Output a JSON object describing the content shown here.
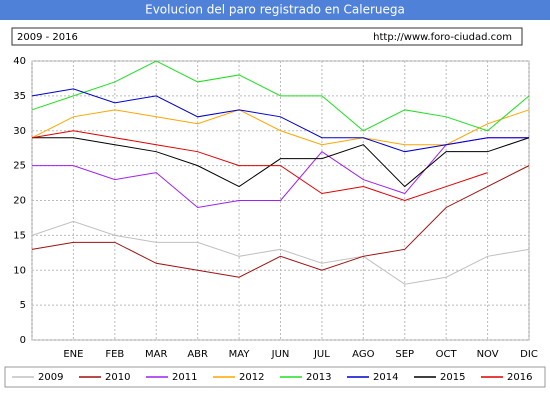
{
  "chart_data": {
    "type": "line",
    "title": "Evolucion del paro registrado en Caleruega",
    "subtitle": "2009 - 2016",
    "source": "http://www.foro-ciudad.com",
    "categories": [
      null,
      "ENE",
      "FEB",
      "MAR",
      "ABR",
      "MAY",
      "JUN",
      "JUL",
      "AGO",
      "SEP",
      "OCT",
      "NOV",
      "DIC"
    ],
    "ylim": [
      0,
      40
    ],
    "yticks": [
      0,
      5,
      10,
      15,
      20,
      25,
      30,
      35,
      40
    ],
    "grid": true,
    "series": [
      {
        "name": "2009",
        "color": "#c0c0c0",
        "values": [
          15,
          17,
          15,
          14,
          14,
          12,
          13,
          11,
          12,
          8,
          9,
          12,
          13
        ]
      },
      {
        "name": "2010",
        "color": "#a01010",
        "values": [
          13,
          14,
          14,
          11,
          10,
          9,
          12,
          10,
          12,
          13,
          19,
          22,
          25
        ]
      },
      {
        "name": "2011",
        "color": "#a020f0",
        "values": [
          25,
          25,
          23,
          24,
          19,
          20,
          20,
          27,
          23,
          21,
          28,
          29,
          29
        ]
      },
      {
        "name": "2012",
        "color": "#ffa500",
        "values": [
          29,
          32,
          33,
          32,
          31,
          33,
          30,
          28,
          29,
          28,
          28,
          31,
          33
        ]
      },
      {
        "name": "2013",
        "color": "#20e020",
        "values": [
          33,
          35,
          37,
          40,
          37,
          38,
          35,
          35,
          30,
          33,
          32,
          30,
          35
        ]
      },
      {
        "name": "2014",
        "color": "#0000d0",
        "values": [
          35,
          36,
          34,
          35,
          32,
          33,
          32,
          29,
          29,
          27,
          28,
          29,
          29
        ]
      },
      {
        "name": "2015",
        "color": "#000000",
        "values": [
          29,
          29,
          28,
          27,
          25,
          22,
          26,
          26,
          28,
          22,
          27,
          27,
          29
        ]
      },
      {
        "name": "2016",
        "color": "#e00000",
        "values": [
          29,
          30,
          29,
          28,
          27,
          25,
          25,
          21,
          22,
          20,
          22,
          24,
          null
        ]
      }
    ]
  }
}
